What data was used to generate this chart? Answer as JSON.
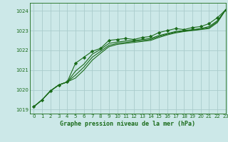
{
  "title": "Graphe pression niveau de la mer (hPa)",
  "bg_color": "#cce8e8",
  "grid_color": "#aacccc",
  "line_color": "#1a6b1a",
  "marker_color": "#1a6b1a",
  "xlim": [
    -0.5,
    23
  ],
  "ylim": [
    1018.8,
    1024.4
  ],
  "yticks": [
    1019,
    1020,
    1021,
    1022,
    1023,
    1024
  ],
  "xticks": [
    0,
    1,
    2,
    3,
    4,
    5,
    6,
    7,
    8,
    9,
    10,
    11,
    12,
    13,
    14,
    15,
    16,
    17,
    18,
    19,
    20,
    21,
    22,
    23
  ],
  "series": [
    {
      "x": [
        0,
        1,
        2,
        3,
        4,
        5,
        6,
        7,
        8,
        9,
        10,
        11,
        12,
        13,
        14,
        15,
        16,
        17,
        18,
        19,
        20,
        21,
        22,
        23
      ],
      "y": [
        1019.15,
        1019.5,
        1019.95,
        1020.25,
        1020.4,
        1021.35,
        1021.65,
        1021.95,
        1022.1,
        1022.5,
        1022.55,
        1022.6,
        1022.55,
        1022.65,
        1022.7,
        1022.9,
        1023.0,
        1023.1,
        1023.05,
        1023.15,
        1023.2,
        1023.35,
        1023.65,
        1024.05
      ],
      "has_markers": true
    },
    {
      "x": [
        0,
        1,
        2,
        3,
        4,
        5,
        6,
        7,
        8,
        9,
        10,
        11,
        12,
        13,
        14,
        15,
        16,
        17,
        18,
        19,
        20,
        21,
        22,
        23
      ],
      "y": [
        1019.15,
        1019.5,
        1019.95,
        1020.25,
        1020.4,
        1020.95,
        1021.3,
        1021.8,
        1022.05,
        1022.35,
        1022.42,
        1022.47,
        1022.5,
        1022.55,
        1022.6,
        1022.75,
        1022.85,
        1022.95,
        1023.0,
        1023.05,
        1023.1,
        1023.2,
        1023.5,
        1024.05
      ],
      "has_markers": false
    },
    {
      "x": [
        0,
        1,
        2,
        3,
        4,
        5,
        6,
        7,
        8,
        9,
        10,
        11,
        12,
        13,
        14,
        15,
        16,
        17,
        18,
        19,
        20,
        21,
        22,
        23
      ],
      "y": [
        1019.15,
        1019.5,
        1019.95,
        1020.25,
        1020.4,
        1020.75,
        1021.15,
        1021.65,
        1021.95,
        1022.25,
        1022.35,
        1022.4,
        1022.45,
        1022.5,
        1022.55,
        1022.7,
        1022.82,
        1022.92,
        1022.97,
        1023.02,
        1023.07,
        1023.15,
        1023.45,
        1024.05
      ],
      "has_markers": false
    },
    {
      "x": [
        0,
        1,
        2,
        3,
        4,
        5,
        6,
        7,
        8,
        9,
        10,
        11,
        12,
        13,
        14,
        15,
        16,
        17,
        18,
        19,
        20,
        21,
        22,
        23
      ],
      "y": [
        1019.15,
        1019.5,
        1019.95,
        1020.25,
        1020.4,
        1020.6,
        1021.0,
        1021.5,
        1021.85,
        1022.18,
        1022.3,
        1022.35,
        1022.4,
        1022.45,
        1022.5,
        1022.65,
        1022.78,
        1022.88,
        1022.95,
        1023.0,
        1023.05,
        1023.1,
        1023.4,
        1024.05
      ],
      "has_markers": false
    }
  ]
}
